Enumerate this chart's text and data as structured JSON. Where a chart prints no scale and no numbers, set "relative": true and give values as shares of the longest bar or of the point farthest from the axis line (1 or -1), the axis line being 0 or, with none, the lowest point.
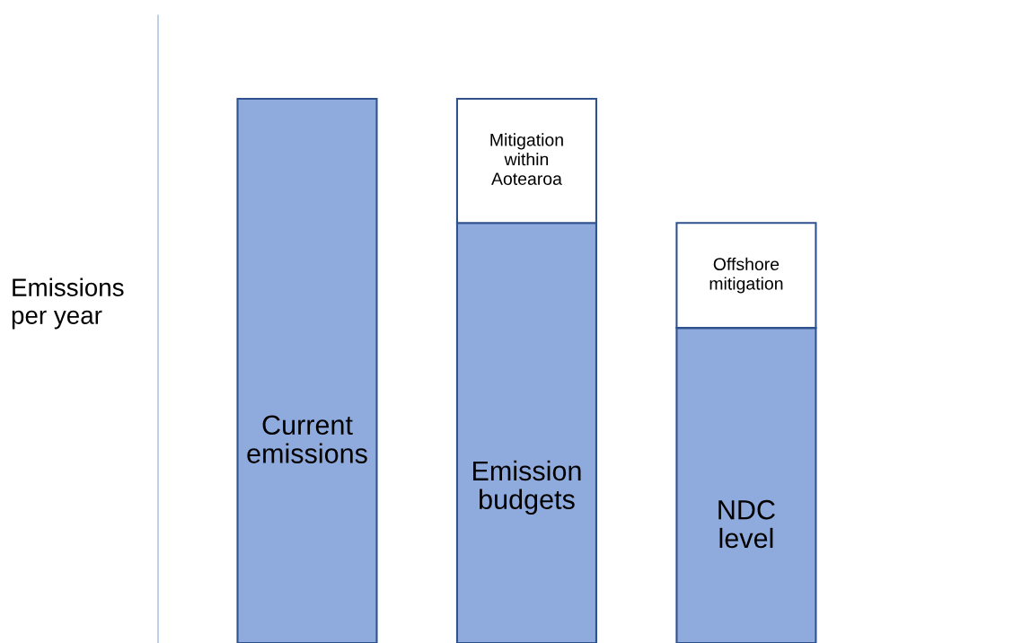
{
  "chart_data": {
    "type": "bar",
    "ylabel": "Emissions\nper year",
    "relative": true,
    "stacked": true,
    "categories": [
      null,
      null,
      null
    ],
    "series": [
      {
        "color": "#8faadc",
        "values": [
          1.0,
          0.772,
          0.579
        ]
      },
      {
        "color": "#ffffff",
        "values": [
          null,
          0.228,
          0.193
        ]
      }
    ],
    "annotations": [
      "Current\nemissions",
      "Emission\nbudgets",
      "Mitigation\nwithin\nAotearoa",
      "NDC\nlevel",
      "Offshore\nmitigation"
    ]
  }
}
